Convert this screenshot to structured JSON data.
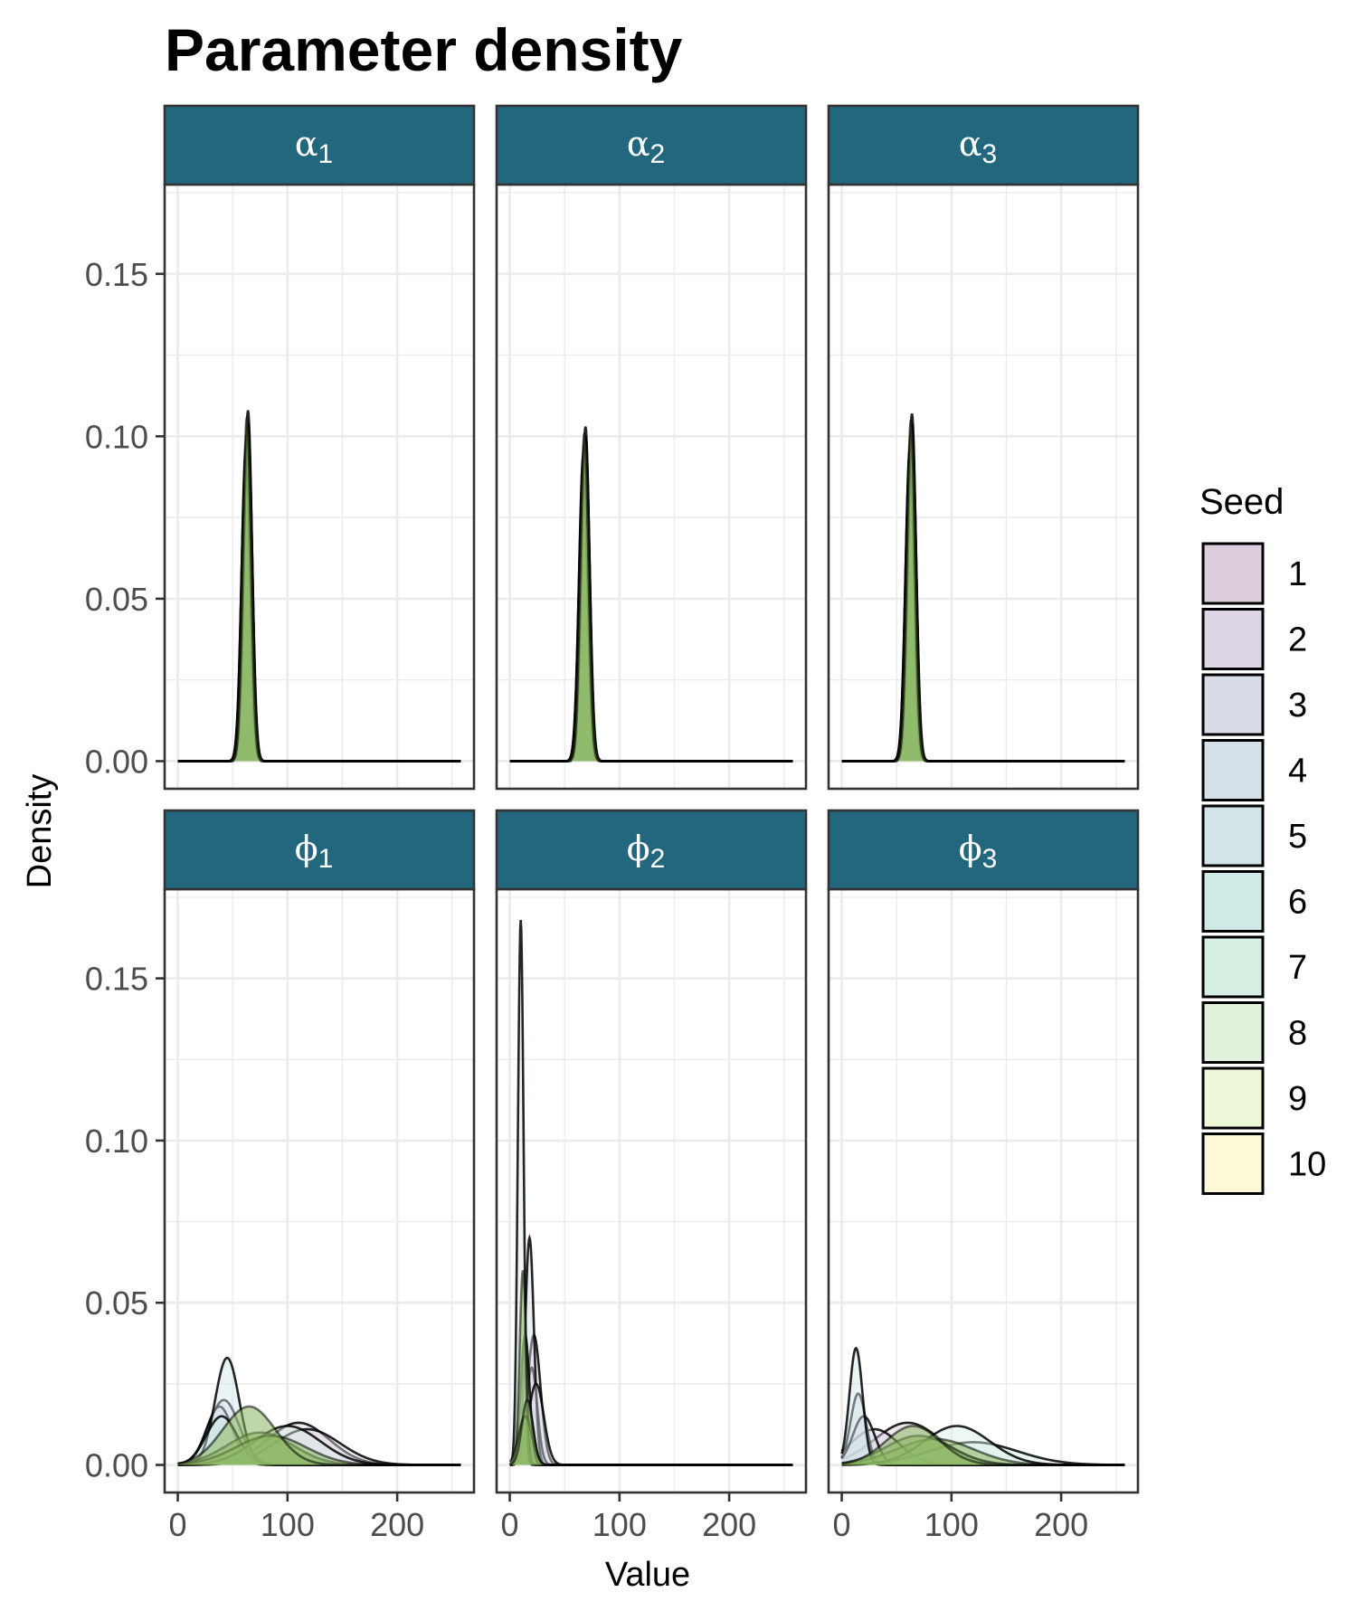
{
  "chart_data": {
    "type": "area",
    "title": "Parameter density",
    "xlabel": "Value",
    "ylabel": "Density",
    "xlim": [
      -12,
      270
    ],
    "ylim": [
      -0.0085,
      0.1775
    ],
    "x_ticks": [
      0,
      100,
      200
    ],
    "x_tick_labels": [
      "0",
      "100",
      "200"
    ],
    "y_ticks": [
      0,
      0.05,
      0.1,
      0.15
    ],
    "y_tick_labels": [
      "0.00",
      "0.05",
      "0.10",
      "0.15"
    ],
    "grid": true,
    "legend": {
      "title": "Seed",
      "position": "right",
      "labels": [
        "1",
        "2",
        "3",
        "4",
        "5",
        "6",
        "7",
        "8",
        "9",
        "10"
      ]
    },
    "seed_colors": [
      "#dcccdc",
      "#ddd4e6",
      "#d9dbe7",
      "#d5e0e8",
      "#d1e4e8",
      "#cfeae6",
      "#d6efe3",
      "#e1f3dc",
      "#eef7d8",
      "#fdf9d6"
    ],
    "panels": [
      {
        "label": "α",
        "subscript": "1",
        "peaks": [
          {
            "mu": 62,
            "sd": 4.0,
            "h": 0.092
          },
          {
            "mu": 63,
            "sd": 3.8,
            "h": 0.1
          },
          {
            "mu": 64,
            "sd": 3.7,
            "h": 0.108
          },
          {
            "mu": 62,
            "sd": 3.9,
            "h": 0.095
          },
          {
            "mu": 63,
            "sd": 4.0,
            "h": 0.098
          },
          {
            "mu": 64,
            "sd": 3.8,
            "h": 0.104
          },
          {
            "mu": 63,
            "sd": 3.9,
            "h": 0.101
          },
          {
            "mu": 62,
            "sd": 3.8,
            "h": 0.097
          },
          {
            "mu": 64,
            "sd": 3.9,
            "h": 0.103
          },
          {
            "mu": 63,
            "sd": 3.7,
            "h": 0.106
          }
        ]
      },
      {
        "label": "α",
        "subscript": "2",
        "peaks": [
          {
            "mu": 67,
            "sd": 4.0,
            "h": 0.09
          },
          {
            "mu": 68,
            "sd": 3.8,
            "h": 0.097
          },
          {
            "mu": 69,
            "sd": 3.7,
            "h": 0.103
          },
          {
            "mu": 67,
            "sd": 3.9,
            "h": 0.094
          },
          {
            "mu": 68,
            "sd": 4.0,
            "h": 0.096
          },
          {
            "mu": 69,
            "sd": 3.8,
            "h": 0.1
          },
          {
            "mu": 68,
            "sd": 3.9,
            "h": 0.098
          },
          {
            "mu": 67,
            "sd": 3.8,
            "h": 0.092
          },
          {
            "mu": 69,
            "sd": 3.9,
            "h": 0.099
          },
          {
            "mu": 68,
            "sd": 3.7,
            "h": 0.101
          }
        ]
      },
      {
        "label": "α",
        "subscript": "3",
        "peaks": [
          {
            "mu": 62,
            "sd": 4.0,
            "h": 0.093
          },
          {
            "mu": 63,
            "sd": 3.8,
            "h": 0.099
          },
          {
            "mu": 64,
            "sd": 3.7,
            "h": 0.107
          },
          {
            "mu": 62,
            "sd": 3.9,
            "h": 0.096
          },
          {
            "mu": 63,
            "sd": 4.0,
            "h": 0.098
          },
          {
            "mu": 64,
            "sd": 3.8,
            "h": 0.104
          },
          {
            "mu": 63,
            "sd": 3.9,
            "h": 0.101
          },
          {
            "mu": 62,
            "sd": 3.8,
            "h": 0.095
          },
          {
            "mu": 64,
            "sd": 3.9,
            "h": 0.102
          },
          {
            "mu": 63,
            "sd": 3.7,
            "h": 0.105
          }
        ]
      },
      {
        "label": "ϕ",
        "subscript": "1",
        "peaks": [
          {
            "mu": 110,
            "sd": 28,
            "h": 0.013
          },
          {
            "mu": 118,
            "sd": 30,
            "h": 0.011
          },
          {
            "mu": 42,
            "sd": 14,
            "h": 0.02
          },
          {
            "mu": 38,
            "sd": 12,
            "h": 0.018
          },
          {
            "mu": 45,
            "sd": 11,
            "h": 0.033
          },
          {
            "mu": 40,
            "sd": 14,
            "h": 0.015
          },
          {
            "mu": 100,
            "sd": 30,
            "h": 0.012
          },
          {
            "mu": 75,
            "sd": 30,
            "h": 0.01
          },
          {
            "mu": 85,
            "sd": 32,
            "h": 0.009
          },
          {
            "mu": 65,
            "sd": 24,
            "h": 0.018
          }
        ]
      },
      {
        "label": "ϕ",
        "subscript": "2",
        "peaks": [
          {
            "mu": 22,
            "sd": 6.0,
            "h": 0.04
          },
          {
            "mu": 20,
            "sd": 5.0,
            "h": 0.03
          },
          {
            "mu": 18,
            "sd": 4.0,
            "h": 0.07
          },
          {
            "mu": 24,
            "sd": 7.0,
            "h": 0.025
          },
          {
            "mu": 16,
            "sd": 5.0,
            "h": 0.02
          },
          {
            "mu": 14,
            "sd": 4.0,
            "h": 0.04
          },
          {
            "mu": 10,
            "sd": 2.6,
            "h": 0.168
          },
          {
            "mu": 12,
            "sd": 3.0,
            "h": 0.06
          },
          {
            "mu": 14,
            "sd": 6.0,
            "h": 0.015
          },
          {
            "mu": 16,
            "sd": 5.0,
            "h": 0.02
          }
        ]
      },
      {
        "label": "ϕ",
        "subscript": "3",
        "peaks": [
          {
            "mu": 60,
            "sd": 30,
            "h": 0.013
          },
          {
            "mu": 30,
            "sd": 22,
            "h": 0.011
          },
          {
            "mu": 15,
            "sd": 7,
            "h": 0.022
          },
          {
            "mu": 20,
            "sd": 10,
            "h": 0.015
          },
          {
            "mu": 13,
            "sd": 6,
            "h": 0.036
          },
          {
            "mu": 120,
            "sd": 40,
            "h": 0.007
          },
          {
            "mu": 105,
            "sd": 30,
            "h": 0.012
          },
          {
            "mu": 85,
            "sd": 35,
            "h": 0.008
          },
          {
            "mu": 70,
            "sd": 30,
            "h": 0.009
          },
          {
            "mu": 65,
            "sd": 25,
            "h": 0.012
          }
        ]
      }
    ]
  }
}
